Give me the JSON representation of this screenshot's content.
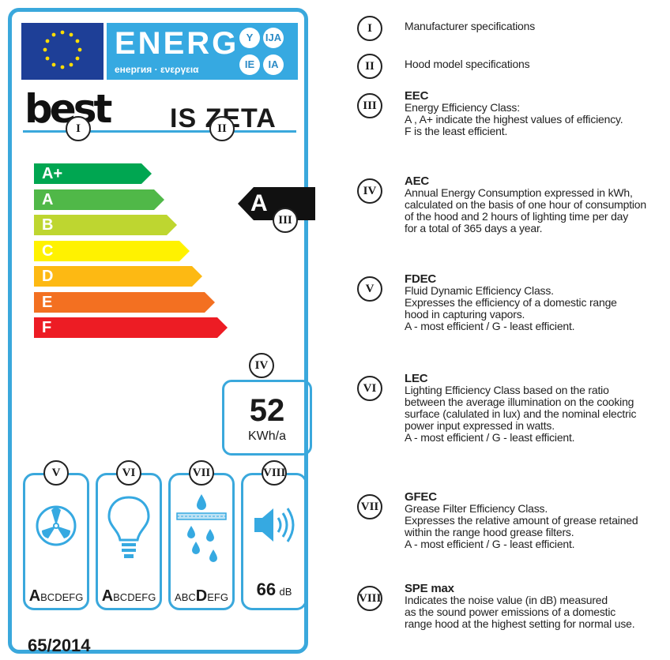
{
  "label": {
    "banner": {
      "word": "ENERG",
      "subtitle": "енергия · ενεργεια",
      "langs": [
        "Y",
        "IJA",
        "IE",
        "IA"
      ]
    },
    "brand": "best",
    "model": "IS ZETA",
    "scale": [
      {
        "label": "A+",
        "color": "#00a651"
      },
      {
        "label": "A",
        "color": "#50b848"
      },
      {
        "label": "B",
        "color": "#bed630"
      },
      {
        "label": "C",
        "color": "#fff200"
      },
      {
        "label": "D",
        "color": "#fdb913"
      },
      {
        "label": "E",
        "color": "#f37021"
      },
      {
        "label": "F",
        "color": "#ed1c24"
      }
    ],
    "energy_class": "A",
    "annual_energy": {
      "value": "52",
      "unit": "KWh/a"
    },
    "tiles": [
      {
        "id": "fdec",
        "icon": "fan-icon",
        "big": "A",
        "rest": "BCDEFG",
        "prefix": ""
      },
      {
        "id": "lec",
        "icon": "light-bulb-icon",
        "big": "A",
        "rest": "BCDEFG",
        "prefix": ""
      },
      {
        "id": "gfec",
        "icon": "grease-filter-icon",
        "big": "D",
        "rest": "EFG",
        "prefix": "ABC"
      },
      {
        "id": "noise",
        "icon": "speaker-icon",
        "value": "66",
        "unit": "dB"
      }
    ],
    "regulation": "65/2014",
    "accent_color": "#3aa8dc"
  },
  "markers": [
    "I",
    "II",
    "III",
    "IV",
    "V",
    "VI",
    "VII",
    "VIII"
  ],
  "legend": [
    {
      "num": "I",
      "title": "",
      "lines": [
        "Manufacturer specifications"
      ]
    },
    {
      "num": "II",
      "title": "",
      "lines": [
        "Hood model specifications"
      ]
    },
    {
      "num": "III",
      "title": "EEC",
      "lines": [
        "Energy Efficiency Class:",
        "A , A+ indicate the highest values of efficiency.",
        "F is the least efficient."
      ]
    },
    {
      "num": "IV",
      "title": "AEC",
      "lines": [
        "Annual Energy Consumption expressed in kWh,",
        "calculated on the basis of one hour of consumption",
        "of the hood and 2 hours of lighting time per day",
        "for a total of 365 days a year."
      ]
    },
    {
      "num": "V",
      "title": "FDEC",
      "lines": [
        "Fluid Dynamic Efficiency Class.",
        "Expresses the efficiency of a domestic range",
        "hood in capturing vapors.",
        "A - most efficient / G - least efficient."
      ]
    },
    {
      "num": "VI",
      "title": "LEC",
      "lines": [
        "Lighting Efficiency Class based on the ratio",
        "between the average illumination on the cooking",
        "surface (calulated in lux) and the nominal electric",
        "power input expressed in watts.",
        "A - most efficient / G - least efficient."
      ]
    },
    {
      "num": "VII",
      "title": "GFEC",
      "lines": [
        "Grease Filter Efficiency Class.",
        "Expresses the relative amount of grease retained",
        "within the range hood grease filters.",
        "A - most efficient / G - least efficient."
      ]
    },
    {
      "num": "VIII",
      "title": "SPE max",
      "lines": [
        "Indicates the noise value (in dB) measured",
        "as the sound power emissions of a domestic",
        "range hood at the highest setting for normal use."
      ]
    }
  ]
}
